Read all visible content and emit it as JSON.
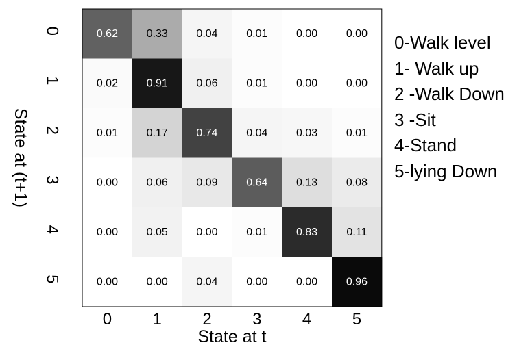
{
  "chart_data": {
    "type": "heatmap",
    "title": "",
    "xlabel": "State at t",
    "ylabel": "State at (t+1)",
    "x_categories": [
      "0",
      "1",
      "2",
      "3",
      "4",
      "5"
    ],
    "y_categories": [
      "0",
      "1",
      "2",
      "3",
      "4",
      "5"
    ],
    "values": [
      [
        "0.62",
        "0.33",
        "0.04",
        "0.01",
        "0.00",
        "0.00"
      ],
      [
        "0.02",
        "0.91",
        "0.06",
        "0.01",
        "0.00",
        "0.00"
      ],
      [
        "0.01",
        "0.17",
        "0.74",
        "0.04",
        "0.03",
        "0.01"
      ],
      [
        "0.00",
        "0.06",
        "0.09",
        "0.64",
        "0.13",
        "0.08"
      ],
      [
        "0.00",
        "0.05",
        "0.00",
        "0.01",
        "0.83",
        "0.11"
      ],
      [
        "0.00",
        "0.00",
        "0.04",
        "0.00",
        "0.00",
        "0.96"
      ]
    ],
    "colormap": "grayscale (white = 0, black = 1)",
    "vlim": [
      0,
      1
    ],
    "grid": false,
    "legend_position": "right",
    "legend": [
      "0-Walk level",
      "1- Walk up",
      "2 -Walk Down",
      "3 -Sit",
      "4-Stand",
      "5-lying Down"
    ]
  }
}
